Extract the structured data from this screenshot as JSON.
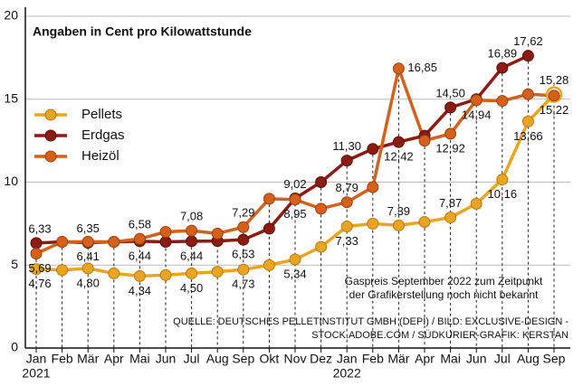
{
  "chart_data": {
    "type": "line",
    "title": "Angaben in Cent pro Kilowattstunde",
    "categories": [
      "Jan",
      "Feb",
      "Mär",
      "Apr",
      "Mai",
      "Jun",
      "Jul",
      "Aug",
      "Sep",
      "Okt",
      "Nov",
      "Dez",
      "Jan",
      "Feb",
      "Mär",
      "Apr",
      "Mai",
      "Jun",
      "Jul",
      "Aug",
      "Sep"
    ],
    "years": [
      "2021",
      null,
      null,
      null,
      null,
      null,
      null,
      null,
      null,
      null,
      null,
      null,
      "2022",
      null,
      null,
      null,
      null,
      null,
      null,
      null,
      null
    ],
    "series": [
      {
        "name": "Pellets",
        "color": "#e9a521",
        "values": [
          4.76,
          4.7,
          4.8,
          4.5,
          4.34,
          4.4,
          4.5,
          4.6,
          4.73,
          5.0,
          5.34,
          6.1,
          7.33,
          7.5,
          7.39,
          7.6,
          7.87,
          8.7,
          10.16,
          13.66,
          15.28
        ],
        "value_labels": [
          "4,76",
          null,
          "4,80",
          null,
          "4,34",
          null,
          "4,50",
          null,
          "4,73",
          null,
          "5,34",
          null,
          "7,33",
          null,
          "7,39",
          null,
          "7,87",
          null,
          "10,16",
          "13,66",
          "15,28"
        ]
      },
      {
        "name": "Erdgas",
        "color": "#8c1c13",
        "values": [
          6.33,
          6.4,
          6.35,
          6.4,
          6.44,
          6.4,
          6.44,
          6.45,
          6.53,
          7.2,
          9.02,
          10.0,
          11.3,
          12.0,
          12.42,
          12.8,
          14.5,
          15.0,
          16.89,
          17.62,
          null
        ],
        "value_labels": [
          "6,33",
          null,
          "6,35",
          null,
          "6,44",
          null,
          "6,44",
          null,
          "6,53",
          null,
          "9,02",
          null,
          "11,30",
          null,
          "12,42",
          null,
          "14,50",
          null,
          "16,89",
          "17,62",
          null
        ]
      },
      {
        "name": "Heizöl",
        "color": "#d4601c",
        "values": [
          5.69,
          6.4,
          6.41,
          6.4,
          6.58,
          7.0,
          7.08,
          6.9,
          7.29,
          9.0,
          8.95,
          8.4,
          8.79,
          9.7,
          16.85,
          12.5,
          12.92,
          14.94,
          14.9,
          15.3,
          15.22
        ],
        "value_labels": [
          "5,69",
          null,
          "6,41",
          null,
          "6,58",
          null,
          "7,08",
          null,
          "7,29",
          null,
          "8,95",
          null,
          "8,79",
          null,
          "16,85",
          null,
          "12,92",
          "14,94",
          null,
          null,
          "15,22"
        ]
      }
    ],
    "ylim": [
      0,
      20
    ],
    "yticks": [
      0,
      5,
      10,
      15,
      20
    ],
    "grid": true,
    "legend": "upper left",
    "annotation": [
      "Gaspreis September 2022 zum Zeitpunkt",
      "der Grafikerstellung noch nicht bekannt"
    ],
    "source": [
      "QUELLE: DEUTSCHES PELLETINSTITUT GMBH (DEPI) / BILD: EXCLUSIVE-DESIGN -",
      "STOCK.ADOBE.COM / SÜDKURIER-GRAFIK: KERSTAN"
    ]
  }
}
